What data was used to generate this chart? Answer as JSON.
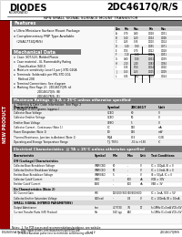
{
  "title": "2DC4617Q/R/S",
  "subtitle": "NPN SMALL SIGNAL SURFACE MOUNT TRANSISTOR",
  "company": "DIODES",
  "company_sub": "INCORPORATED",
  "bg_color": "#f0f0f0",
  "sidebar_color": "#8B0000",
  "sidebar_text": "NEW PRODUCT",
  "section_title_bg": "#666666",
  "section_title_color": "#ffffff",
  "table_header_bg": "#cccccc",
  "table_row_alt": "#eeeeee",
  "table_row_main": "#ffffff",
  "border_color": "#999999",
  "footer_left": "DS26055A Rev. 4 - 2",
  "footer_mid": "1 of 2",
  "footer_right": "2DC4617Q/R/S"
}
